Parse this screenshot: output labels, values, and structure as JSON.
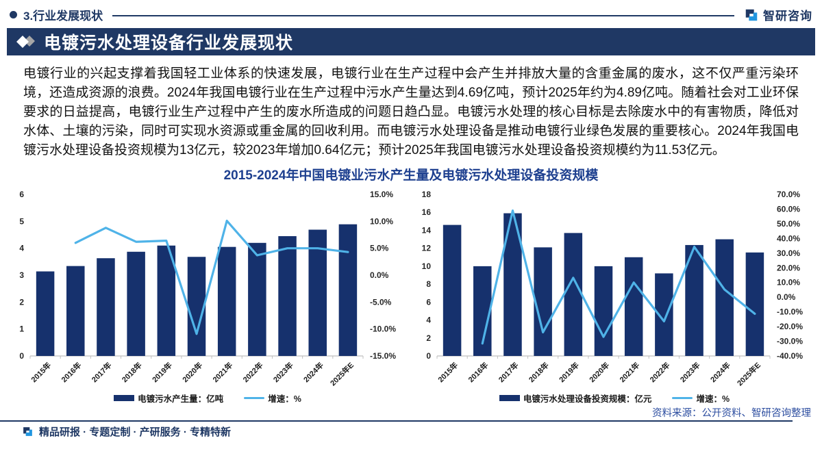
{
  "header": {
    "section_label": "3.行业发展现状",
    "logo_text": "智研咨询"
  },
  "banner": {
    "title": "电镀污水处理设备行业发展现状"
  },
  "paragraph": "电镀行业的兴起支撑着我国轻工业体系的快速发展，电镀行业在生产过程中会产生并排放大量的含重金属的废水，这不仅严重污染环境，还造成资源的浪费。2024年我国电镀行业在生产过程中污水产生量达到4.69亿吨，预计2025年约为4.89亿吨。随着社会对工业环保要求的日益提高，电镀行业生产过程中产生的废水所造成的问题日趋凸显。电镀污水处理的核心目标是去除废水中的有害物质，降低对水体、土壤的污染，同时可实现水资源或重金属的回收利用。而电镀污水处理设备是推动电镀行业绿色发展的重要核心。2024年我国电镀污水处理设备投资规模为13亿元，较2023年增加0.64亿元；预计2025年我国电镀污水处理设备投资规模约为11.53亿元。",
  "chart_section": {
    "title": "2015-2024年中国电镀业污水产生量及电镀污水处理设备投资规模",
    "source_note": "资料来源：公开资料、智研咨询整理"
  },
  "chart_data": [
    {
      "type": "bar",
      "subtype": "bar+line dual-axis",
      "categories": [
        "2015年",
        "2016年",
        "2017年",
        "2018年",
        "2019年",
        "2020年",
        "2021年",
        "2022年",
        "2023年",
        "2024年",
        "2025年E"
      ],
      "series": [
        {
          "name": "电镀污水产生量：亿吨",
          "type": "bar",
          "axis": "left",
          "values": [
            3.14,
            3.34,
            3.63,
            3.87,
            4.1,
            3.68,
            4.05,
            4.2,
            4.45,
            4.69,
            4.89
          ]
        },
        {
          "name": "增速：%",
          "type": "line",
          "axis": "right",
          "values": [
            null,
            6.0,
            8.8,
            6.2,
            6.4,
            -10.9,
            10.1,
            3.7,
            5.0,
            5.0,
            4.3
          ]
        }
      ],
      "left_axis": {
        "min": 0,
        "max": 6,
        "step": 1,
        "format": "int"
      },
      "right_axis": {
        "min": -15,
        "max": 15,
        "step": 5,
        "format": "pct"
      },
      "grid": false,
      "legend_position": "bottom"
    },
    {
      "type": "bar",
      "subtype": "bar+line dual-axis",
      "categories": [
        "2015年",
        "2016年",
        "2017年",
        "2018年",
        "2019年",
        "2020年",
        "2021年",
        "2022年",
        "2023年",
        "2024年",
        "2025年E"
      ],
      "series": [
        {
          "name": "电镀污水处理设备投资规模：亿元",
          "type": "bar",
          "axis": "left",
          "values": [
            14.6,
            10.0,
            15.9,
            12.1,
            13.7,
            10.0,
            11.0,
            9.2,
            12.36,
            13.0,
            11.53
          ]
        },
        {
          "name": "增速：%",
          "type": "line",
          "axis": "right",
          "values": [
            null,
            -31.5,
            59.0,
            -23.9,
            13.2,
            -27.0,
            10.0,
            -16.4,
            34.3,
            5.2,
            -11.3
          ]
        }
      ],
      "left_axis": {
        "min": 0,
        "max": 18,
        "step": 2,
        "format": "int"
      },
      "right_axis": {
        "min": -40,
        "max": 70,
        "step": 10,
        "format": "pct"
      },
      "grid": false,
      "legend_position": "bottom"
    }
  ],
  "footer": {
    "tagline": "精品研报 · 专题定制 · 产研服务 · 专精特新"
  },
  "colors": {
    "navy": "#1f3864",
    "bar": "#16316d",
    "line": "#4fb3e8",
    "chart_title": "#1d3f8f",
    "source_blue": "#2d4ea0",
    "logo_dark": "#1f3864",
    "logo_azure": "#2196e0",
    "axis_gray": "#bfbfbf",
    "tick_text": "#262626"
  }
}
